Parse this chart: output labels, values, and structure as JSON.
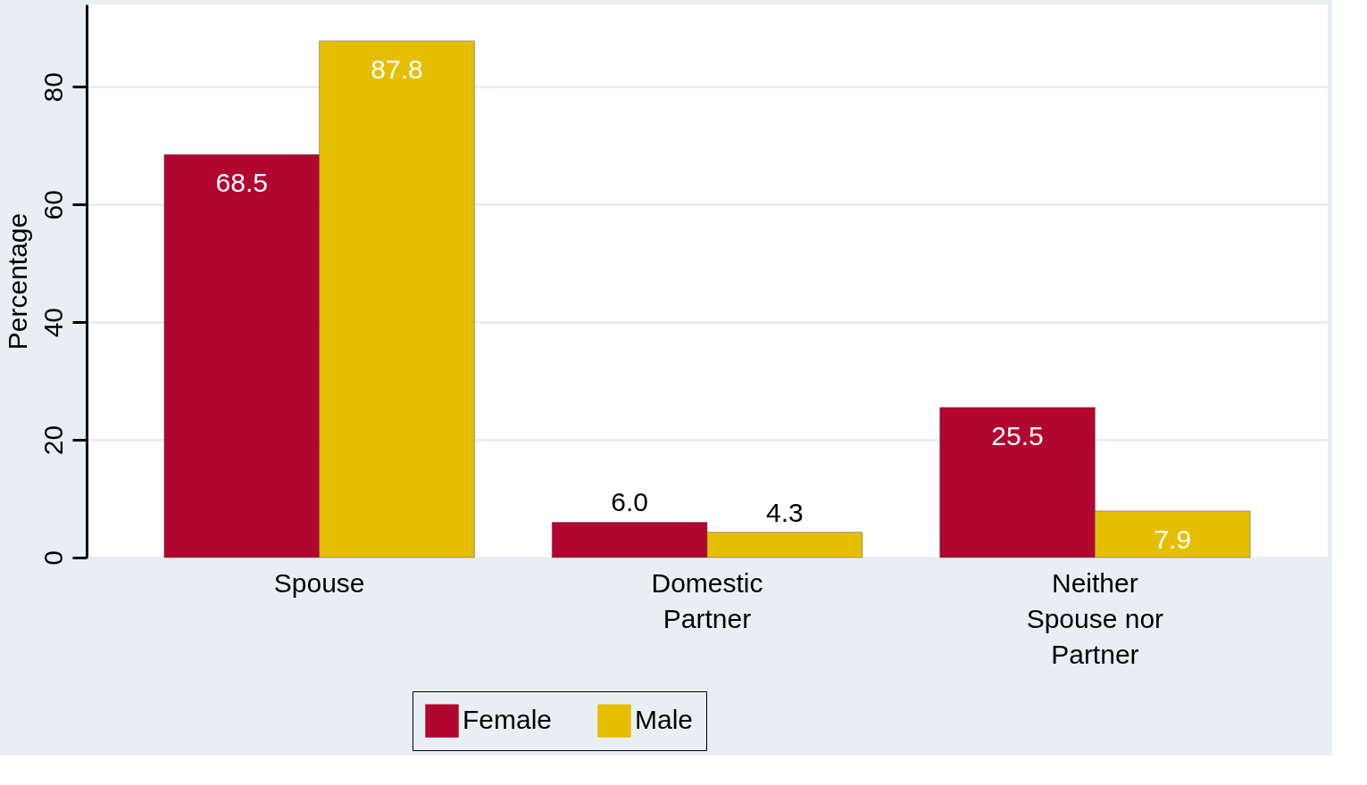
{
  "chart_data": {
    "type": "bar",
    "ylabel": "Percentage",
    "categories": [
      "Spouse",
      "Domestic\nPartner",
      "Neither\nSpouse nor\nPartner"
    ],
    "series": [
      {
        "name": "Female",
        "color": "#b0062f",
        "values": [
          68.5,
          6.0,
          25.5
        ],
        "value_labels": [
          "68.5",
          "6.0",
          "25.5"
        ]
      },
      {
        "name": "Male",
        "color": "#e6be00",
        "values": [
          87.8,
          4.3,
          7.9
        ],
        "value_labels": [
          "87.8",
          "4.3",
          "7.9"
        ]
      }
    ],
    "ylim": [
      0,
      94
    ],
    "yticks": [
      0,
      20,
      40,
      60,
      80
    ],
    "grid": "y",
    "legend": "bottom"
  }
}
